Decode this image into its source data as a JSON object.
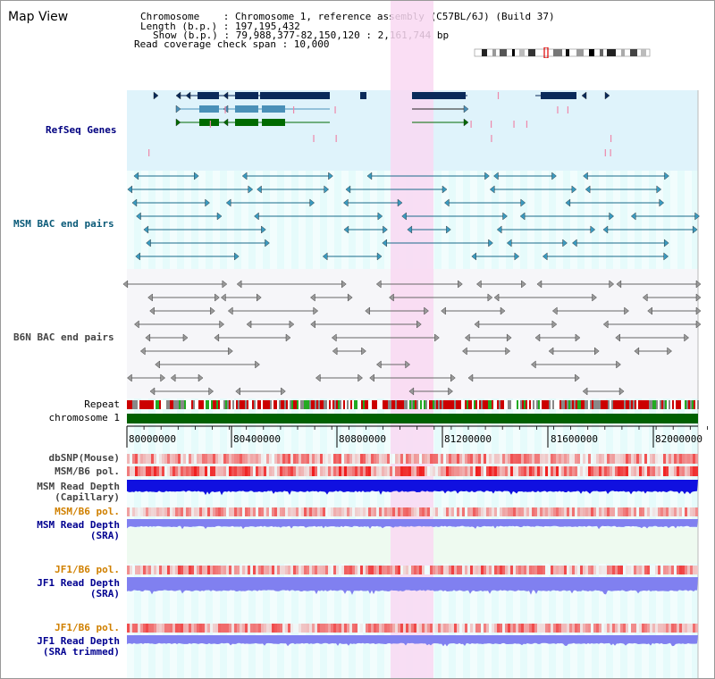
{
  "header": {
    "title": "Map View",
    "chromosome_line": "Chromosome    : Chromosome 1, reference assembly (C57BL/6J) (Build 37)",
    "length_line": "Length (b.p.) : 197,195,432",
    "show_line": "Show (b.p.) : 79,988,377-82,150,120 : 2,161,744 bp",
    "coverage_line": "Read coverage check span : 10,000"
  },
  "tracks": {
    "refseq": "RefSeq Genes",
    "msm_bac": "MSM BAC end pairs",
    "b6n_bac": "B6N BAC end pairs",
    "repeat": "Repeat",
    "chromosome": "chromosome 1",
    "dbsnp": "dbSNP(Mouse)",
    "msm_pol": "MSM/B6 pol.",
    "msm_depth_cap": "MSM Read Depth\n(Capillary)",
    "msm_pol2": "MSM/B6 pol.",
    "msm_depth_sra": "MSM Read Depth\n(SRA)",
    "jf1_pol": "JF1/B6 pol.",
    "jf1_depth_sra": "JF1 Read Depth\n(SRA)",
    "jf1_pol2": "JF1/B6 pol.",
    "jf1_depth_trim": "JF1 Read Depth\n(SRA trimmed)"
  },
  "axis": {
    "ticks": [
      "80000000",
      "80400000",
      "80800000",
      "81200000",
      "81600000",
      "82000000"
    ]
  },
  "colors": {
    "refseq_bg": "#dff3fb",
    "highlight": "#f9d8f2",
    "grid_bg": "#e6fbfb",
    "chromosome": "#006000",
    "gene_navy": "#0a2a5a",
    "gene_light": "#4a90b8",
    "gene_green": "#006a00",
    "msm_bac": "#1a6a8a",
    "b6n_bac": "#666666",
    "depth_blue": "#1010e0",
    "depth_light": "#8080f0"
  }
}
